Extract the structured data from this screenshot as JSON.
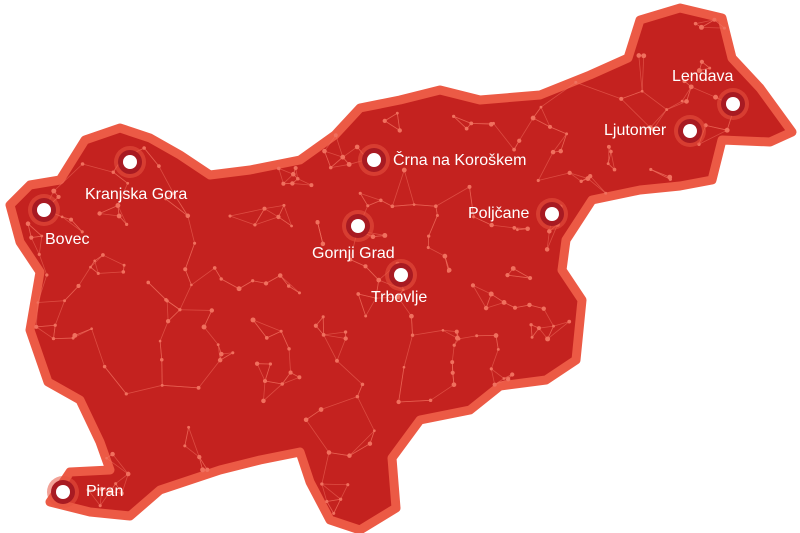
{
  "map": {
    "colors": {
      "fill": "#c4221f",
      "border": "#ec5a45",
      "network": "#f0705e",
      "marker": "#ffffff",
      "marker_ring": "#a81a22"
    },
    "cities": [
      {
        "name": "Lendava"
      },
      {
        "name": "Ljutomer"
      },
      {
        "name": "Črna na Koroškem"
      },
      {
        "name": "Kranjska Gora"
      },
      {
        "name": "Bovec"
      },
      {
        "name": "Poljčane"
      },
      {
        "name": "Gornji Grad"
      },
      {
        "name": "Trbovlje"
      },
      {
        "name": "Piran"
      }
    ]
  }
}
